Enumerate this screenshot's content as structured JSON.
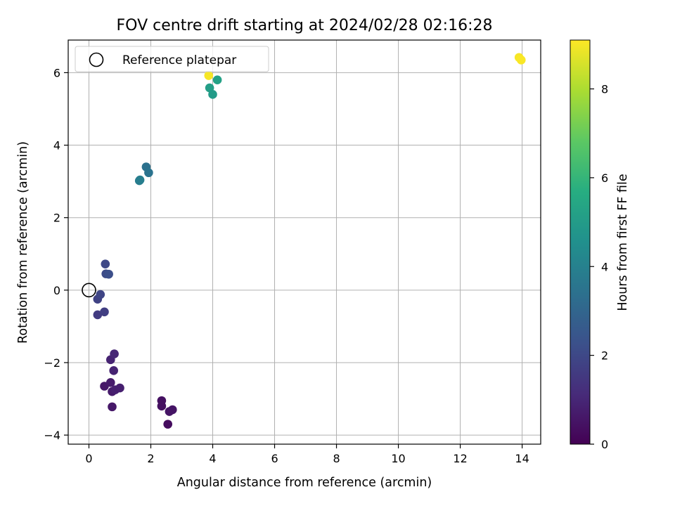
{
  "chart_data": {
    "type": "scatter",
    "title": "FOV centre drift starting at 2024/02/28 02:16:28",
    "xlabel": "Angular distance from reference (arcmin)",
    "ylabel": "Rotation from reference (arcmin)",
    "xlim": [
      -0.67,
      14.6
    ],
    "ylim": [
      -4.25,
      6.9
    ],
    "xticks": [
      0,
      2,
      4,
      6,
      8,
      10,
      12,
      14
    ],
    "yticks": [
      -4,
      -2,
      0,
      2,
      4,
      6
    ],
    "grid": true,
    "legend": {
      "placement": "top-left",
      "entries": [
        "Reference platepar"
      ]
    },
    "reference_point": {
      "name": "Reference platepar",
      "x": 0,
      "y": 0
    },
    "colorbar": {
      "label": "Hours from first FF file",
      "colormap": "viridis",
      "range": [
        0,
        9.1
      ],
      "ticks": [
        0,
        2,
        4,
        6,
        8
      ]
    },
    "points": [
      {
        "x": 2.55,
        "y": -3.7,
        "hours": 0.3
      },
      {
        "x": 2.35,
        "y": -3.05,
        "hours": 0.4
      },
      {
        "x": 2.35,
        "y": -3.2,
        "hours": 0.4
      },
      {
        "x": 2.6,
        "y": -3.35,
        "hours": 0.5
      },
      {
        "x": 2.7,
        "y": -3.3,
        "hours": 0.5
      },
      {
        "x": 0.75,
        "y": -3.22,
        "hours": 0.6
      },
      {
        "x": 0.5,
        "y": -2.65,
        "hours": 0.6
      },
      {
        "x": 0.7,
        "y": -2.55,
        "hours": 0.7
      },
      {
        "x": 0.75,
        "y": -2.8,
        "hours": 0.7
      },
      {
        "x": 0.85,
        "y": -2.75,
        "hours": 0.8
      },
      {
        "x": 1.0,
        "y": -2.7,
        "hours": 0.8
      },
      {
        "x": 0.8,
        "y": -2.22,
        "hours": 0.9
      },
      {
        "x": 0.7,
        "y": -1.92,
        "hours": 0.9
      },
      {
        "x": 0.82,
        "y": -1.76,
        "hours": 1.0
      },
      {
        "x": 0.28,
        "y": -0.68,
        "hours": 1.6
      },
      {
        "x": 0.5,
        "y": -0.6,
        "hours": 1.7
      },
      {
        "x": 0.28,
        "y": -0.25,
        "hours": 1.8
      },
      {
        "x": 0.37,
        "y": -0.12,
        "hours": 1.9
      },
      {
        "x": 0.53,
        "y": 0.72,
        "hours": 2.0
      },
      {
        "x": 0.55,
        "y": 0.45,
        "hours": 2.1
      },
      {
        "x": 0.64,
        "y": 0.44,
        "hours": 2.2
      },
      {
        "x": 1.63,
        "y": 3.02,
        "hours": 3.8
      },
      {
        "x": 1.65,
        "y": 3.04,
        "hours": 3.9
      },
      {
        "x": 1.85,
        "y": 3.4,
        "hours": 3.4
      },
      {
        "x": 1.93,
        "y": 3.24,
        "hours": 3.5
      },
      {
        "x": 3.9,
        "y": 5.58,
        "hours": 5.1
      },
      {
        "x": 4.0,
        "y": 5.4,
        "hours": 5.0
      },
      {
        "x": 4.15,
        "y": 5.8,
        "hours": 5.2
      },
      {
        "x": 3.87,
        "y": 5.92,
        "hours": 9.0
      },
      {
        "x": 13.9,
        "y": 6.42,
        "hours": 9.0
      },
      {
        "x": 13.97,
        "y": 6.35,
        "hours": 9.05
      }
    ]
  }
}
